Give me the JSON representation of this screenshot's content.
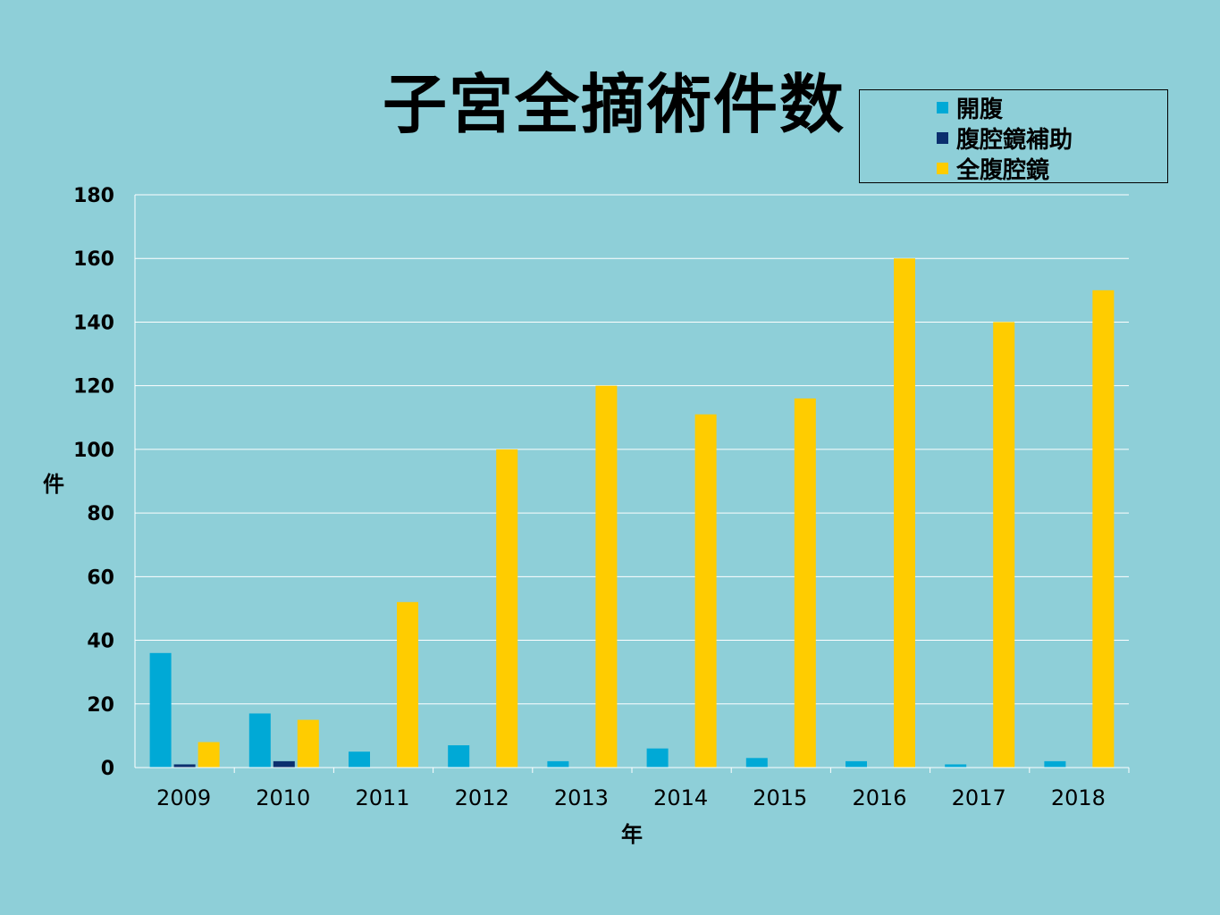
{
  "chart_data": {
    "type": "bar",
    "title": "子宮全摘術件数",
    "xlabel": "年",
    "ylabel": "件",
    "ylim": [
      0,
      180
    ],
    "yticks": [
      0,
      20,
      40,
      60,
      80,
      100,
      120,
      140,
      160,
      180
    ],
    "grid": true,
    "legend": "top-right",
    "categories": [
      "2009",
      "2010",
      "2011",
      "2012",
      "2013",
      "2014",
      "2015",
      "2016",
      "2017",
      "2018"
    ],
    "series": [
      {
        "name": "開腹",
        "color": "#00a9d6",
        "values": [
          36,
          17,
          5,
          7,
          2,
          6,
          3,
          2,
          1,
          2
        ]
      },
      {
        "name": "腹腔鏡補助",
        "color": "#0b2f6e",
        "values": [
          1,
          2,
          0,
          0,
          0,
          0,
          0,
          0,
          0,
          0
        ]
      },
      {
        "name": "全腹腔鏡",
        "color": "#ffcc00",
        "values": [
          8,
          15,
          52,
          100,
          120,
          111,
          116,
          160,
          140,
          150
        ]
      }
    ]
  }
}
